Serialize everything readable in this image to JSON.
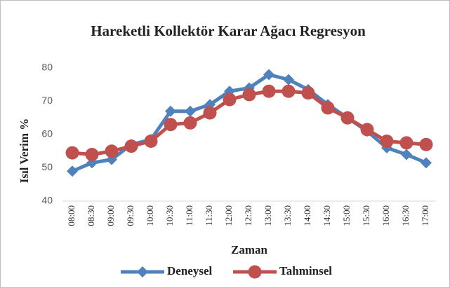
{
  "chart_data": {
    "type": "line",
    "title": "Hareketli Kollektör Karar  Ağacı Regresyon",
    "xlabel": "Zaman",
    "ylabel": "Isıl Verim %",
    "categories": [
      "08:00",
      "08:30",
      "09:00",
      "09:30",
      "10:00",
      "10:30",
      "11:00",
      "11:30",
      "12:00",
      "12:30",
      "13:00",
      "13:30",
      "14:00",
      "14:30",
      "15:00",
      "15:30",
      "16:00",
      "16:30",
      "17:00"
    ],
    "series": [
      {
        "name": "Deneysel",
        "color": "#4f81bd",
        "marker": "diamond",
        "values": [
          49,
          51.5,
          52.5,
          57,
          58.5,
          67,
          67,
          69,
          73,
          74,
          78,
          76.5,
          73.5,
          69,
          65,
          61,
          56,
          54,
          51.5
        ]
      },
      {
        "name": "Tahminsel",
        "color": "#c0504d",
        "marker": "circle",
        "values": [
          54.5,
          54,
          55,
          56.5,
          58,
          63,
          63.5,
          66.5,
          70.5,
          72,
          73,
          73,
          72.5,
          68,
          65,
          61.5,
          58,
          57.5,
          57
        ]
      }
    ],
    "ylim": [
      40,
      80
    ],
    "yticks": [
      40,
      50,
      60,
      70,
      80
    ],
    "grid": false,
    "legend": "bottom"
  }
}
